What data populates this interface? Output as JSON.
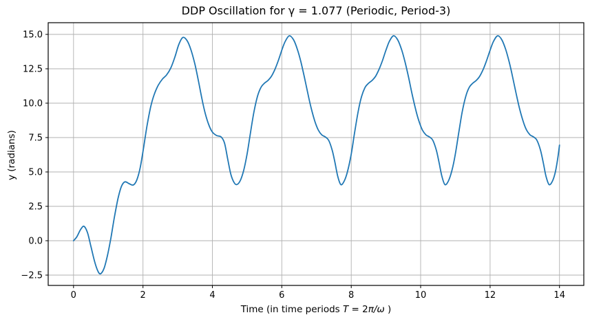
{
  "figure": {
    "background_color": "#ffffff"
  },
  "chart_data": {
    "type": "line",
    "title": "DDP Oscillation for γ = 1.077 (Periodic, Period-3)",
    "ylabel": "y (radians)",
    "xlabel_segments": [
      {
        "text": "Time (in time periods ",
        "italic": false
      },
      {
        "text": "T",
        "italic": true
      },
      {
        "text": " = 2",
        "italic": false
      },
      {
        "text": "π/ω",
        "italic": true
      },
      {
        "text": " )",
        "italic": false
      }
    ],
    "xlabel_plain": "Time (in time periods T = 2π/ω )",
    "line_color": "#1f77b4",
    "line_width": 1.8,
    "grid": true,
    "grid_color": "#b0b0b0",
    "spine_color": "#000000",
    "legend": null,
    "xlim": [
      -0.73,
      14.7
    ],
    "ylim": [
      -3.25,
      15.85
    ],
    "xticks": {
      "values": [
        0,
        2,
        4,
        6,
        8,
        10,
        12,
        14
      ],
      "labels": [
        "0",
        "2",
        "4",
        "6",
        "8",
        "10",
        "12",
        "14"
      ]
    },
    "yticks": {
      "values": [
        -2.5,
        0.0,
        2.5,
        5.0,
        7.5,
        10.0,
        12.5,
        15.0
      ],
      "labels": [
        "−2.5",
        "0.0",
        "2.5",
        "5.0",
        "7.5",
        "10.0",
        "12.5",
        "15.0"
      ]
    },
    "series": [
      {
        "points": [
          [
            0.0,
            0.0
          ],
          [
            0.1,
            0.3
          ],
          [
            0.2,
            0.8
          ],
          [
            0.3,
            1.05
          ],
          [
            0.4,
            0.6
          ],
          [
            0.5,
            -0.4
          ],
          [
            0.6,
            -1.45
          ],
          [
            0.7,
            -2.2
          ],
          [
            0.78,
            -2.4
          ],
          [
            0.88,
            -2.0
          ],
          [
            0.98,
            -1.05
          ],
          [
            1.08,
            0.25
          ],
          [
            1.18,
            1.75
          ],
          [
            1.28,
            3.05
          ],
          [
            1.38,
            3.95
          ],
          [
            1.48,
            4.28
          ],
          [
            1.6,
            4.15
          ],
          [
            1.72,
            4.05
          ],
          [
            1.82,
            4.4
          ],
          [
            1.92,
            5.3
          ],
          [
            2.02,
            6.8
          ],
          [
            2.12,
            8.4
          ],
          [
            2.22,
            9.7
          ],
          [
            2.32,
            10.6
          ],
          [
            2.44,
            11.3
          ],
          [
            2.56,
            11.75
          ],
          [
            2.68,
            12.05
          ],
          [
            2.8,
            12.55
          ],
          [
            2.92,
            13.35
          ],
          [
            3.03,
            14.25
          ],
          [
            3.15,
            14.78
          ],
          [
            3.27,
            14.55
          ],
          [
            3.38,
            13.9
          ],
          [
            3.5,
            12.8
          ],
          [
            3.6,
            11.6
          ],
          [
            3.7,
            10.3
          ],
          [
            3.8,
            9.2
          ],
          [
            3.9,
            8.4
          ],
          [
            4.0,
            7.9
          ],
          [
            4.12,
            7.65
          ],
          [
            4.25,
            7.55
          ],
          [
            4.35,
            7.1
          ],
          [
            4.44,
            5.95
          ],
          [
            4.53,
            4.85
          ],
          [
            4.62,
            4.25
          ],
          [
            4.7,
            4.08
          ],
          [
            4.8,
            4.35
          ],
          [
            4.9,
            5.1
          ],
          [
            5.0,
            6.3
          ],
          [
            5.1,
            7.9
          ],
          [
            5.2,
            9.4
          ],
          [
            5.3,
            10.5
          ],
          [
            5.4,
            11.15
          ],
          [
            5.5,
            11.45
          ],
          [
            5.6,
            11.65
          ],
          [
            5.7,
            11.95
          ],
          [
            5.8,
            12.45
          ],
          [
            5.9,
            13.1
          ],
          [
            6.0,
            13.85
          ],
          [
            6.1,
            14.5
          ],
          [
            6.22,
            14.9
          ],
          [
            6.34,
            14.6
          ],
          [
            6.45,
            13.9
          ],
          [
            6.55,
            13.0
          ],
          [
            6.65,
            11.9
          ],
          [
            6.75,
            10.7
          ],
          [
            6.85,
            9.6
          ],
          [
            6.95,
            8.7
          ],
          [
            7.05,
            8.05
          ],
          [
            7.15,
            7.7
          ],
          [
            7.25,
            7.55
          ],
          [
            7.35,
            7.3
          ],
          [
            7.45,
            6.6
          ],
          [
            7.53,
            5.7
          ],
          [
            7.61,
            4.7
          ],
          [
            7.7,
            4.08
          ],
          [
            7.8,
            4.35
          ],
          [
            7.9,
            5.1
          ],
          [
            8.0,
            6.3
          ],
          [
            8.1,
            7.9
          ],
          [
            8.2,
            9.4
          ],
          [
            8.3,
            10.5
          ],
          [
            8.4,
            11.15
          ],
          [
            8.5,
            11.45
          ],
          [
            8.6,
            11.65
          ],
          [
            8.7,
            11.95
          ],
          [
            8.8,
            12.45
          ],
          [
            8.9,
            13.1
          ],
          [
            9.0,
            13.85
          ],
          [
            9.1,
            14.5
          ],
          [
            9.22,
            14.9
          ],
          [
            9.34,
            14.6
          ],
          [
            9.45,
            13.9
          ],
          [
            9.55,
            13.0
          ],
          [
            9.65,
            11.9
          ],
          [
            9.75,
            10.7
          ],
          [
            9.85,
            9.6
          ],
          [
            9.95,
            8.7
          ],
          [
            10.05,
            8.05
          ],
          [
            10.15,
            7.7
          ],
          [
            10.25,
            7.55
          ],
          [
            10.35,
            7.3
          ],
          [
            10.45,
            6.6
          ],
          [
            10.53,
            5.7
          ],
          [
            10.61,
            4.7
          ],
          [
            10.7,
            4.08
          ],
          [
            10.8,
            4.35
          ],
          [
            10.9,
            5.1
          ],
          [
            11.0,
            6.3
          ],
          [
            11.1,
            7.9
          ],
          [
            11.2,
            9.4
          ],
          [
            11.3,
            10.5
          ],
          [
            11.4,
            11.15
          ],
          [
            11.5,
            11.45
          ],
          [
            11.6,
            11.65
          ],
          [
            11.7,
            11.95
          ],
          [
            11.8,
            12.45
          ],
          [
            11.9,
            13.1
          ],
          [
            12.0,
            13.85
          ],
          [
            12.1,
            14.5
          ],
          [
            12.22,
            14.9
          ],
          [
            12.34,
            14.6
          ],
          [
            12.45,
            13.9
          ],
          [
            12.55,
            13.0
          ],
          [
            12.65,
            11.9
          ],
          [
            12.75,
            10.7
          ],
          [
            12.85,
            9.6
          ],
          [
            12.95,
            8.7
          ],
          [
            13.05,
            8.05
          ],
          [
            13.15,
            7.7
          ],
          [
            13.25,
            7.55
          ],
          [
            13.35,
            7.3
          ],
          [
            13.45,
            6.6
          ],
          [
            13.53,
            5.7
          ],
          [
            13.61,
            4.7
          ],
          [
            13.7,
            4.08
          ],
          [
            13.8,
            4.35
          ],
          [
            13.88,
            5.0
          ],
          [
            13.95,
            6.0
          ],
          [
            14.0,
            6.95
          ]
        ]
      }
    ]
  }
}
